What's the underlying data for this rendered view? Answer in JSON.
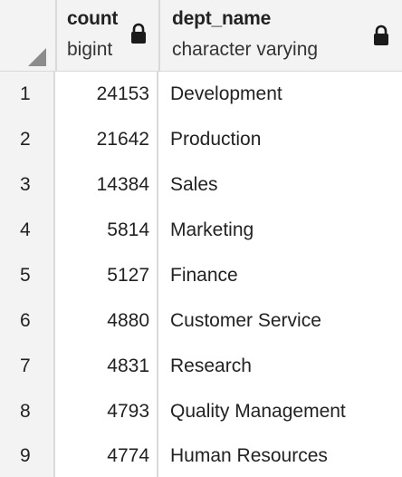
{
  "columns": [
    {
      "name": "count",
      "type": "bigint",
      "locked": true
    },
    {
      "name": "dept_name",
      "type": "character varying",
      "locked": true
    }
  ],
  "rows": [
    {
      "n": "1",
      "count": "24153",
      "dept_name": "Development"
    },
    {
      "n": "2",
      "count": "21642",
      "dept_name": "Production"
    },
    {
      "n": "3",
      "count": "14384",
      "dept_name": "Sales"
    },
    {
      "n": "4",
      "count": "5814",
      "dept_name": "Marketing"
    },
    {
      "n": "5",
      "count": "5127",
      "dept_name": "Finance"
    },
    {
      "n": "6",
      "count": "4880",
      "dept_name": "Customer Service"
    },
    {
      "n": "7",
      "count": "4831",
      "dept_name": "Research"
    },
    {
      "n": "8",
      "count": "4793",
      "dept_name": "Quality Management"
    },
    {
      "n": "9",
      "count": "4774",
      "dept_name": "Human Resources"
    }
  ],
  "icons": {
    "lock": "lock-icon",
    "corner": "sort-corner-icon"
  }
}
